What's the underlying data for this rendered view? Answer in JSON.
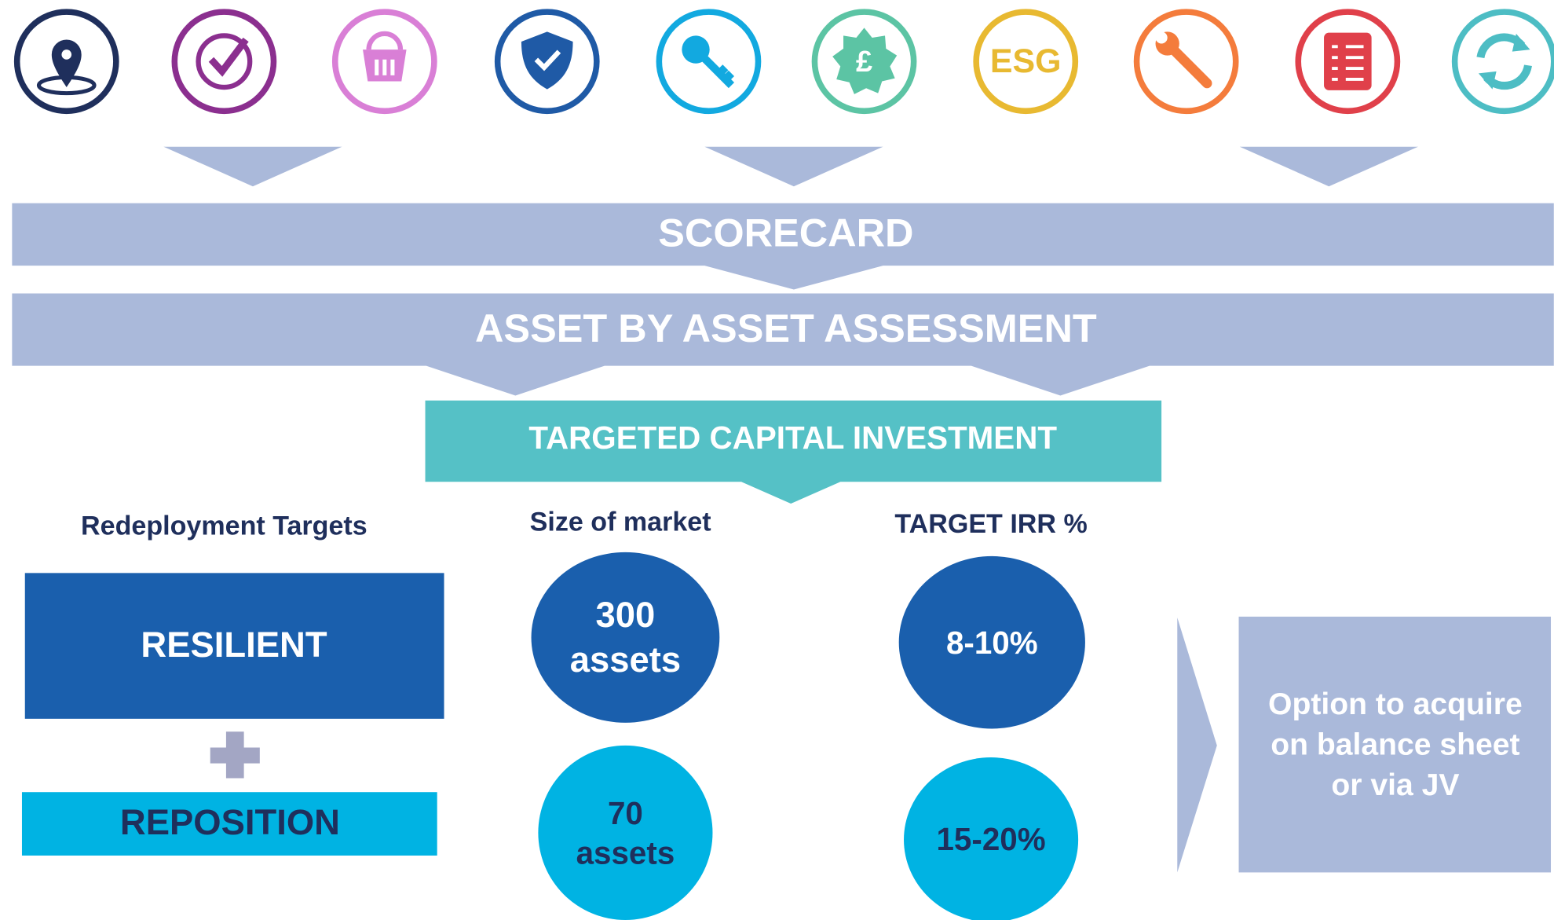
{
  "icon_text": "ESG",
  "scorecard": "SCORECARD",
  "assessment": "ASSET BY ASSET ASSESSMENT",
  "investment": "TARGETED CAPITAL INVESTMENT",
  "columns": [
    "Redeployment Targets",
    "Size of market",
    "TARGET IRR %"
  ],
  "rows": [
    {
      "target": "RESILIENT",
      "market": [
        "300",
        "assets"
      ],
      "irr": "8-10%"
    },
    {
      "target": "REPOSITION",
      "market": [
        "70",
        "assets"
      ],
      "irr": "15-20%"
    }
  ],
  "option": [
    "Option to acquire",
    "on balance sheet",
    "or via JV"
  ]
}
